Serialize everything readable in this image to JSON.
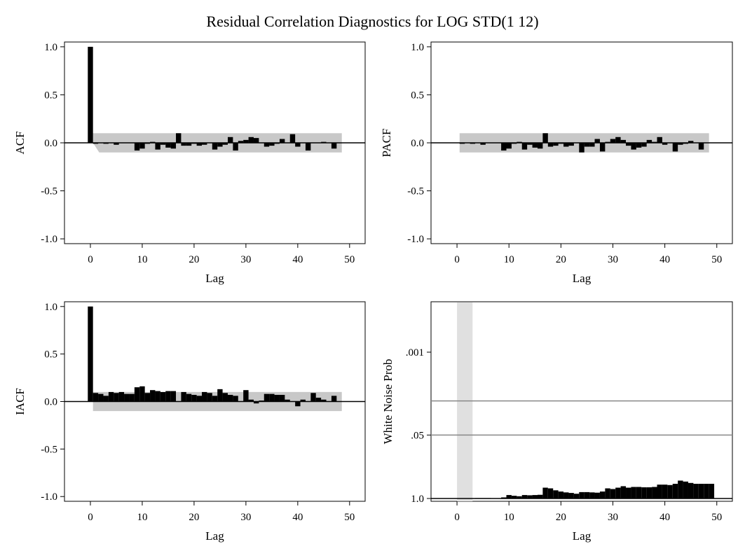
{
  "title": "Residual Correlation Diagnostics for LOG  STD(1 12)",
  "chart_data": [
    {
      "type": "bar",
      "panel": "ACF",
      "ylabel": "ACF",
      "xlabel": "Lag",
      "xlim": [
        -5,
        53
      ],
      "ylim": [
        -1.05,
        1.05
      ],
      "xticks": [
        "0",
        "10",
        "20",
        "30",
        "40",
        "50"
      ],
      "yticks": [
        "1.0",
        "0.5",
        "0.0",
        "-0.5",
        "-1.0"
      ],
      "lags": [
        0,
        1,
        2,
        3,
        4,
        5,
        6,
        7,
        8,
        9,
        10,
        11,
        12,
        13,
        14,
        15,
        16,
        17,
        18,
        19,
        20,
        21,
        22,
        23,
        24,
        25,
        26,
        27,
        28,
        29,
        30,
        31,
        32,
        33,
        34,
        35,
        36,
        37,
        38,
        39,
        40,
        41,
        42,
        43,
        44,
        45,
        46,
        47,
        48
      ],
      "values": [
        1.0,
        -0.01,
        0.0,
        -0.01,
        0.0,
        -0.02,
        0.0,
        0.0,
        0.0,
        -0.08,
        -0.06,
        -0.01,
        0.01,
        -0.07,
        -0.02,
        -0.05,
        -0.06,
        0.1,
        -0.03,
        -0.03,
        -0.01,
        -0.03,
        -0.02,
        0.0,
        -0.07,
        -0.04,
        -0.02,
        0.06,
        -0.08,
        0.02,
        0.03,
        0.06,
        0.05,
        0.0,
        -0.04,
        -0.03,
        -0.01,
        0.04,
        0.0,
        0.09,
        -0.04,
        0.0,
        -0.08,
        0.0,
        0.0,
        0.01,
        0.0,
        -0.06,
        0.0
      ],
      "confidence_band": {
        "start_lag": 1,
        "end_lag": 48,
        "upper": 0.1,
        "lower": -0.1,
        "taper_start": true
      }
    },
    {
      "type": "bar",
      "panel": "PACF",
      "ylabel": "PACF",
      "xlabel": "Lag",
      "xlim": [
        -5,
        53
      ],
      "ylim": [
        -1.05,
        1.05
      ],
      "xticks": [
        "0",
        "10",
        "20",
        "30",
        "40",
        "50"
      ],
      "yticks": [
        "1.0",
        "0.5",
        "0.0",
        "-0.5",
        "-1.0"
      ],
      "lags": [
        1,
        2,
        3,
        4,
        5,
        6,
        7,
        8,
        9,
        10,
        11,
        12,
        13,
        14,
        15,
        16,
        17,
        18,
        19,
        20,
        21,
        22,
        23,
        24,
        25,
        26,
        27,
        28,
        29,
        30,
        31,
        32,
        33,
        34,
        35,
        36,
        37,
        38,
        39,
        40,
        41,
        42,
        43,
        44,
        45,
        46,
        47,
        48
      ],
      "values": [
        -0.01,
        0.0,
        -0.01,
        0.0,
        -0.02,
        0.0,
        0.0,
        0.0,
        -0.08,
        -0.06,
        -0.01,
        0.01,
        -0.07,
        -0.02,
        -0.05,
        -0.06,
        0.1,
        -0.04,
        -0.03,
        -0.01,
        -0.04,
        -0.03,
        0.0,
        -0.1,
        -0.04,
        -0.04,
        0.04,
        -0.09,
        0.01,
        0.04,
        0.06,
        0.03,
        -0.03,
        -0.07,
        -0.05,
        -0.04,
        0.03,
        0.01,
        0.06,
        -0.02,
        0.0,
        -0.09,
        -0.02,
        -0.01,
        0.02,
        0.0,
        -0.07,
        0.0
      ],
      "confidence_band": {
        "start_lag": 1,
        "end_lag": 48,
        "upper": 0.1,
        "lower": -0.1,
        "taper_start": false
      }
    },
    {
      "type": "bar",
      "panel": "IACF",
      "ylabel": "IACF",
      "xlabel": "Lag",
      "xlim": [
        -5,
        53
      ],
      "ylim": [
        -1.05,
        1.05
      ],
      "xticks": [
        "0",
        "10",
        "20",
        "30",
        "40",
        "50"
      ],
      "yticks": [
        "1.0",
        "0.5",
        "0.0",
        "-0.5",
        "-1.0"
      ],
      "lags": [
        0,
        1,
        2,
        3,
        4,
        5,
        6,
        7,
        8,
        9,
        10,
        11,
        12,
        13,
        14,
        15,
        16,
        17,
        18,
        19,
        20,
        21,
        22,
        23,
        24,
        25,
        26,
        27,
        28,
        29,
        30,
        31,
        32,
        33,
        34,
        35,
        36,
        37,
        38,
        39,
        40,
        41,
        42,
        43,
        44,
        45,
        46,
        47,
        48
      ],
      "values": [
        1.0,
        0.09,
        0.08,
        0.06,
        0.1,
        0.09,
        0.1,
        0.08,
        0.08,
        0.15,
        0.16,
        0.09,
        0.12,
        0.11,
        0.1,
        0.11,
        0.11,
        0.0,
        0.1,
        0.08,
        0.07,
        0.06,
        0.1,
        0.09,
        0.06,
        0.13,
        0.09,
        0.07,
        0.06,
        0.0,
        0.12,
        0.02,
        -0.02,
        0.01,
        0.08,
        0.08,
        0.07,
        0.07,
        0.02,
        0.0,
        -0.05,
        0.02,
        0.0,
        0.09,
        0.04,
        0.02,
        0.0,
        0.06,
        0.0
      ],
      "confidence_band": {
        "start_lag": 1,
        "end_lag": 48,
        "upper": 0.1,
        "lower": -0.1,
        "taper_start": false
      }
    },
    {
      "type": "bar",
      "panel": "White Noise Prob",
      "ylabel": "White Noise Prob",
      "xlabel": "Lag",
      "xlim": [
        -5,
        53
      ],
      "ylim": [
        0,
        1
      ],
      "y_scale": "log",
      "xticks": [
        "0",
        "10",
        "20",
        "30",
        "40",
        "50"
      ],
      "yticks": [
        ".001",
        ".05",
        "1.0"
      ],
      "reference_lines": [
        0.01,
        0.05
      ],
      "shaded_region": {
        "start_lag": 0,
        "end_lag": 3
      },
      "lags": [
        1,
        2,
        3,
        4,
        5,
        6,
        7,
        8,
        9,
        10,
        11,
        12,
        13,
        14,
        15,
        16,
        17,
        18,
        19,
        20,
        21,
        22,
        23,
        24,
        25,
        26,
        27,
        28,
        29,
        30,
        31,
        32,
        33,
        34,
        35,
        36,
        37,
        38,
        39,
        40,
        41,
        42,
        43,
        44,
        45,
        46,
        47,
        48,
        49
      ],
      "values": [
        1,
        1,
        1,
        0.98,
        0.98,
        0.98,
        1.0,
        1.0,
        0.95,
        0.85,
        0.88,
        0.9,
        0.85,
        0.86,
        0.85,
        0.84,
        0.6,
        0.62,
        0.68,
        0.72,
        0.75,
        0.77,
        0.8,
        0.74,
        0.74,
        0.75,
        0.76,
        0.72,
        0.62,
        0.64,
        0.6,
        0.56,
        0.6,
        0.58,
        0.58,
        0.59,
        0.59,
        0.58,
        0.52,
        0.52,
        0.53,
        0.5,
        0.43,
        0.45,
        0.48,
        0.5,
        0.5,
        0.5,
        0.5
      ]
    }
  ]
}
